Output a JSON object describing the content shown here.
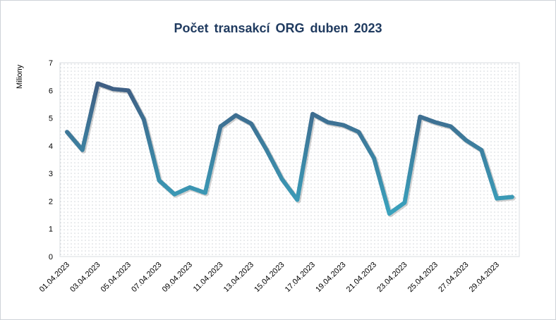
{
  "chart_data": {
    "type": "line",
    "title": "Počet transakcí  ORG duben  2023",
    "ylabel": "Miliony",
    "xlabel": "",
    "ylim": [
      0,
      7
    ],
    "yticks": [
      "0",
      "1",
      "2",
      "3",
      "4",
      "5",
      "6",
      "7"
    ],
    "x_tick_labels": [
      "01.04.2023",
      "03.04.2023",
      "05.04.2023",
      "07.04.2023",
      "09.04.2023",
      "11.04.2023",
      "13.04.2023",
      "15.04.2023",
      "17.04.2023",
      "19.04.2023",
      "21.04.2023",
      "23.04.2023",
      "25.04.2023",
      "27.04.2023",
      "29.04.2023"
    ],
    "x": [
      "01.04.2023",
      "02.04.2023",
      "03.04.2023",
      "04.04.2023",
      "05.04.2023",
      "06.04.2023",
      "07.04.2023",
      "08.04.2023",
      "09.04.2023",
      "10.04.2023",
      "11.04.2023",
      "12.04.2023",
      "13.04.2023",
      "14.04.2023",
      "15.04.2023",
      "16.04.2023",
      "17.04.2023",
      "18.04.2023",
      "19.04.2023",
      "20.04.2023",
      "21.04.2023",
      "22.04.2023",
      "23.04.2023",
      "24.04.2023",
      "25.04.2023",
      "26.04.2023",
      "27.04.2023",
      "28.04.2023",
      "29.04.2023",
      "30.04.2023"
    ],
    "values": [
      4.5,
      3.85,
      6.25,
      6.05,
      6.0,
      4.95,
      2.75,
      2.25,
      2.5,
      2.3,
      4.7,
      5.1,
      4.8,
      3.85,
      2.8,
      2.05,
      5.15,
      4.85,
      4.75,
      4.5,
      3.55,
      1.55,
      1.95,
      5.05,
      4.85,
      4.7,
      4.2,
      3.85,
      2.1,
      2.15
    ],
    "grid": false,
    "legend": "none",
    "colors": {
      "line_dark": "#3f5d82",
      "line_light": "#3aa3be",
      "title": "#1f3a5f",
      "plot_bg_dots": "#9aa3ab"
    }
  }
}
